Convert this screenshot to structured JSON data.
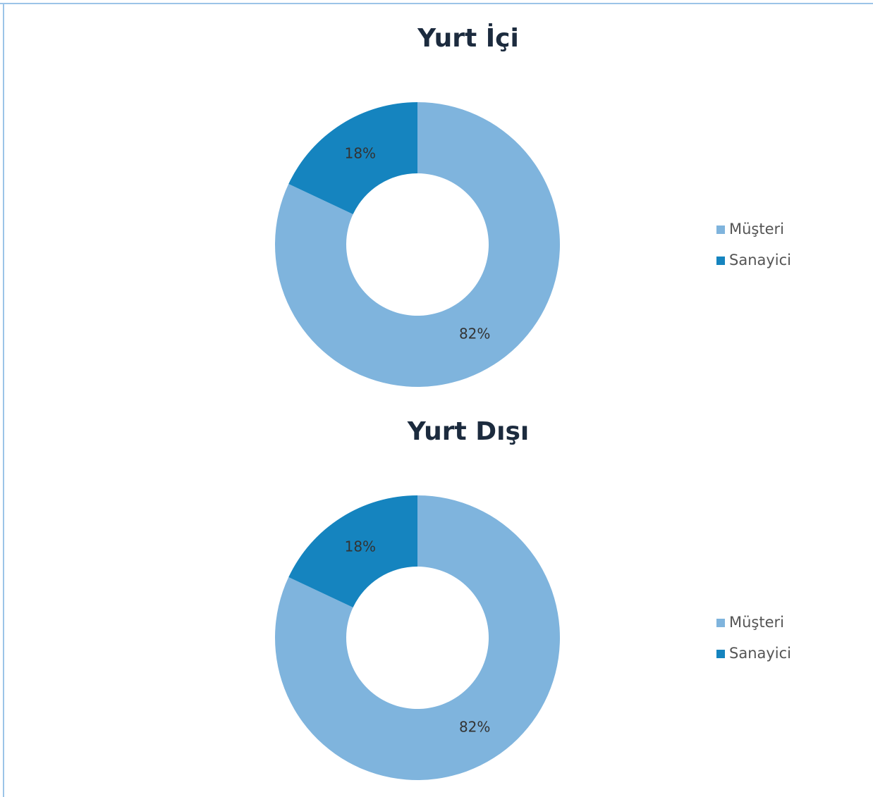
{
  "chart_data": [
    {
      "type": "donut",
      "title": "Yurt İçi",
      "categories": [
        "Müşteri",
        "Sanayici"
      ],
      "values": [
        82,
        18
      ],
      "value_labels": [
        "82%",
        "18%"
      ],
      "colors": [
        "#7fb4dd",
        "#1584bf"
      ],
      "legend": "right"
    },
    {
      "type": "donut",
      "title": "Yurt Dışı",
      "categories": [
        "Müşteri",
        "Sanayici"
      ],
      "values": [
        82,
        18
      ],
      "value_labels": [
        "82%",
        "18%"
      ],
      "colors": [
        "#7fb4dd",
        "#1584bf"
      ],
      "legend": "right"
    }
  ]
}
